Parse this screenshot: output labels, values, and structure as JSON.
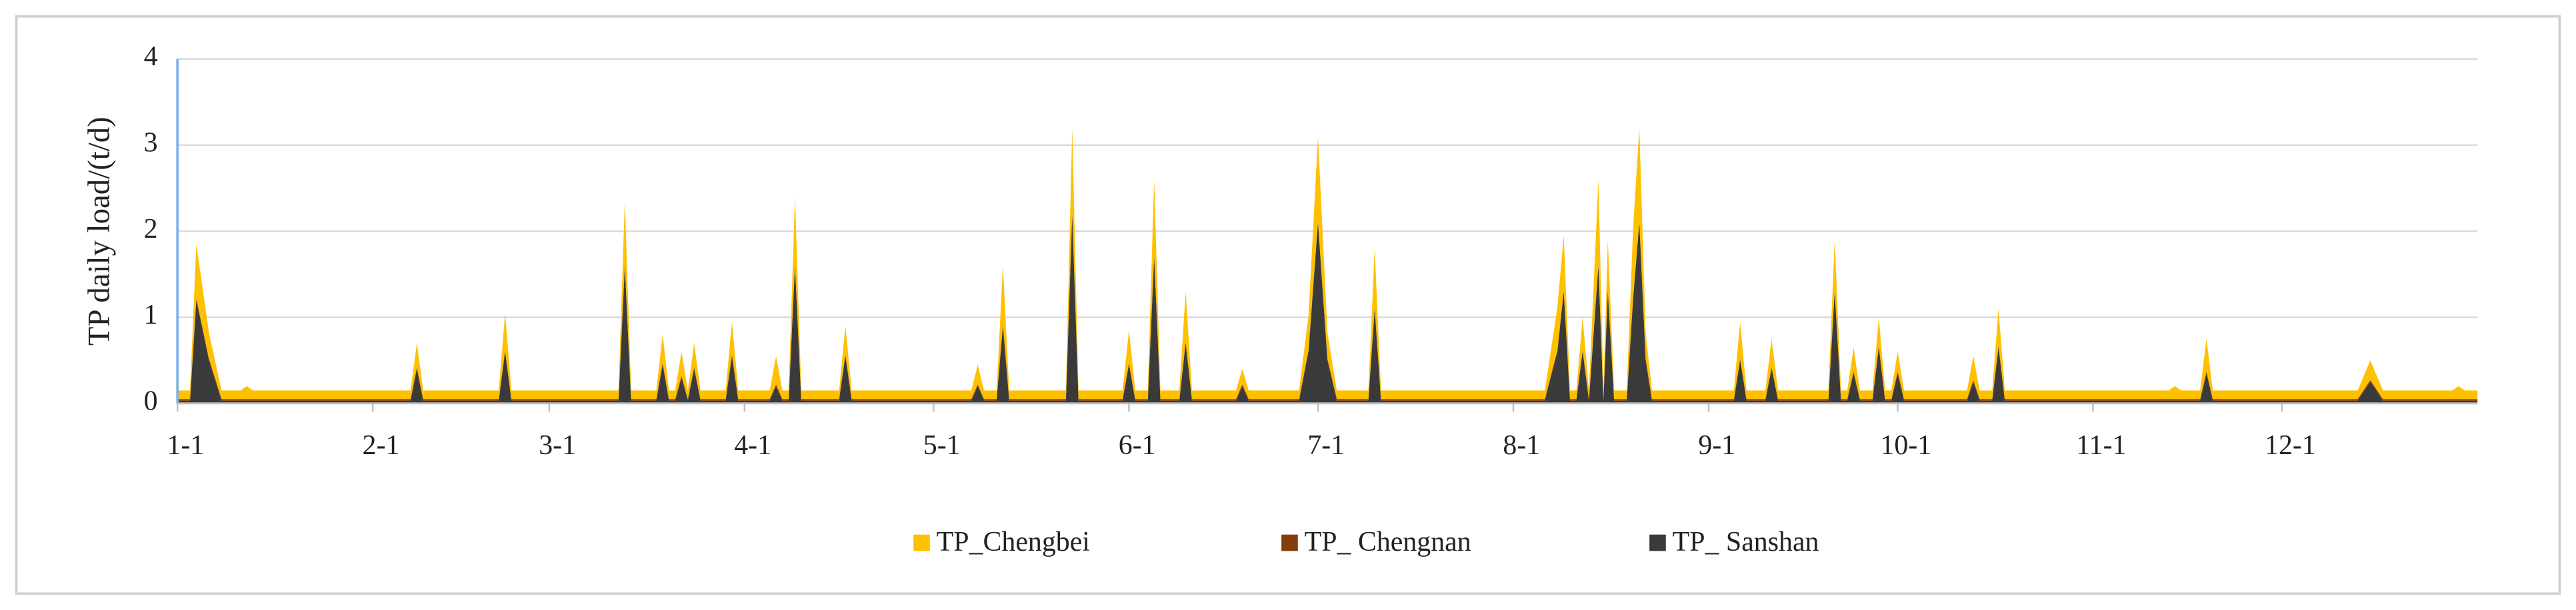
{
  "chart_data": {
    "type": "stacked-area",
    "y_label": "TP daily load/(t/d)",
    "xlim": [
      0,
      365
    ],
    "xticks": [
      {
        "value": 0,
        "label": "1-1"
      },
      {
        "value": 31,
        "label": "2-1"
      },
      {
        "value": 59,
        "label": "3-1"
      },
      {
        "value": 90,
        "label": "4-1"
      },
      {
        "value": 120,
        "label": "5-1"
      },
      {
        "value": 151,
        "label": "6-1"
      },
      {
        "value": 181,
        "label": "7-1"
      },
      {
        "value": 212,
        "label": "8-1"
      },
      {
        "value": 243,
        "label": "9-1"
      },
      {
        "value": 273,
        "label": "10-1"
      },
      {
        "value": 304,
        "label": "11-1"
      },
      {
        "value": 334,
        "label": "12-1"
      }
    ],
    "ylim": [
      0,
      4
    ],
    "yticks": [
      0,
      1,
      2,
      3,
      4
    ],
    "grid": true,
    "legend": "bottom",
    "x": [
      0,
      2,
      3,
      5,
      7,
      10,
      11,
      12,
      37,
      38,
      39,
      51,
      52,
      53,
      70,
      71,
      72,
      76,
      77,
      78,
      79,
      80,
      81,
      82,
      83,
      87,
      88,
      89,
      94,
      95,
      96,
      97,
      98,
      99,
      105,
      106,
      107,
      126,
      127,
      128,
      130,
      131,
      132,
      141,
      142,
      143,
      150,
      151,
      152,
      154,
      155,
      156,
      159,
      160,
      161,
      168,
      169,
      170,
      178,
      179.5,
      181,
      182.5,
      184,
      189,
      190,
      191,
      217,
      219,
      220,
      221,
      222,
      223,
      224,
      225.5,
      226.3,
      227,
      228,
      230,
      231,
      232,
      233,
      234,
      247,
      248,
      249,
      252,
      253,
      254,
      262,
      263,
      264,
      265,
      266,
      267,
      269,
      270,
      271,
      272,
      273,
      274,
      284,
      285,
      286,
      288,
      289,
      290,
      316,
      317,
      318,
      321,
      322,
      323,
      346,
      348,
      350,
      361,
      362,
      363,
      365
    ],
    "series": [
      {
        "name": "TP_Chengbei",
        "color": "#ffc000",
        "values": [
          0.1,
          0.1,
          0.63,
          0.3,
          0.1,
          0.1,
          0.15,
          0.1,
          0.1,
          0.28,
          0.1,
          0.1,
          0.43,
          0.1,
          0.1,
          0.73,
          0.1,
          0.1,
          0.33,
          0.1,
          0.1,
          0.28,
          0.1,
          0.28,
          0.1,
          0.1,
          0.38,
          0.1,
          0.1,
          0.33,
          0.1,
          0.1,
          0.78,
          0.1,
          0.1,
          0.33,
          0.1,
          0.1,
          0.23,
          0.1,
          0.1,
          0.68,
          0.1,
          0.1,
          0.98,
          0.1,
          0.1,
          0.38,
          0.1,
          0.1,
          0.88,
          0.1,
          0.1,
          0.58,
          0.1,
          0.1,
          0.18,
          0.1,
          0.1,
          0.4,
          0.98,
          0.3,
          0.1,
          0.1,
          0.68,
          0.1,
          0.1,
          0.5,
          0.63,
          0.1,
          0.1,
          0.38,
          0.1,
          0.98,
          0.1,
          0.58,
          0.1,
          0.1,
          0.8,
          1.08,
          0.3,
          0.1,
          0.1,
          0.43,
          0.1,
          0.1,
          0.33,
          0.1,
          0.1,
          0.58,
          0.1,
          0.1,
          0.28,
          0.1,
          0.1,
          0.33,
          0.1,
          0.1,
          0.23,
          0.1,
          0.1,
          0.28,
          0.1,
          0.1,
          0.43,
          0.1,
          0.1,
          0.15,
          0.1,
          0.1,
          0.38,
          0.1,
          0.1,
          0.23,
          0.1,
          0.1,
          0.15,
          0.1,
          0.1
        ]
      },
      {
        "name": "TP_ Chengnan",
        "color": "#843c0c",
        "values": [
          0.02,
          0.02,
          0.02,
          0.02,
          0.02,
          0.02,
          0.02,
          0.02,
          0.02,
          0.02,
          0.02,
          0.02,
          0.02,
          0.02,
          0.02,
          0.02,
          0.02,
          0.02,
          0.02,
          0.02,
          0.02,
          0.02,
          0.02,
          0.02,
          0.02,
          0.02,
          0.02,
          0.02,
          0.02,
          0.02,
          0.02,
          0.02,
          0.02,
          0.02,
          0.02,
          0.02,
          0.02,
          0.02,
          0.02,
          0.02,
          0.02,
          0.02,
          0.02,
          0.02,
          0.02,
          0.02,
          0.02,
          0.02,
          0.02,
          0.02,
          0.02,
          0.02,
          0.02,
          0.02,
          0.02,
          0.02,
          0.02,
          0.02,
          0.02,
          0.02,
          0.02,
          0.02,
          0.02,
          0.02,
          0.02,
          0.02,
          0.02,
          0.02,
          0.02,
          0.02,
          0.02,
          0.02,
          0.02,
          0.02,
          0.02,
          0.02,
          0.02,
          0.02,
          0.02,
          0.02,
          0.02,
          0.02,
          0.02,
          0.02,
          0.02,
          0.02,
          0.02,
          0.02,
          0.02,
          0.02,
          0.02,
          0.02,
          0.02,
          0.02,
          0.02,
          0.02,
          0.02,
          0.02,
          0.02,
          0.02,
          0.02,
          0.02,
          0.02,
          0.02,
          0.02,
          0.02,
          0.02,
          0.02,
          0.02,
          0.02,
          0.02,
          0.02,
          0.02,
          0.02,
          0.02,
          0.02,
          0.02,
          0.02,
          0.02
        ]
      },
      {
        "name": "TP_ Sanshan",
        "color": "#3a3a3a",
        "values": [
          0.03,
          0.03,
          1.2,
          0.5,
          0.03,
          0.03,
          0.03,
          0.03,
          0.03,
          0.4,
          0.03,
          0.03,
          0.6,
          0.03,
          0.03,
          1.6,
          0.03,
          0.03,
          0.45,
          0.03,
          0.03,
          0.3,
          0.03,
          0.4,
          0.03,
          0.03,
          0.55,
          0.03,
          0.03,
          0.2,
          0.03,
          0.03,
          1.6,
          0.03,
          0.03,
          0.55,
          0.03,
          0.03,
          0.2,
          0.03,
          0.03,
          0.9,
          0.03,
          0.03,
          2.2,
          0.03,
          0.03,
          0.45,
          0.03,
          0.03,
          1.7,
          0.03,
          0.03,
          0.7,
          0.03,
          0.03,
          0.2,
          0.03,
          0.03,
          0.6,
          2.1,
          0.5,
          0.03,
          0.03,
          1.1,
          0.03,
          0.03,
          0.6,
          1.3,
          0.03,
          0.03,
          0.6,
          0.03,
          1.6,
          0.03,
          1.3,
          0.03,
          0.03,
          1.2,
          2.1,
          0.5,
          0.03,
          0.03,
          0.5,
          0.03,
          0.03,
          0.4,
          0.03,
          0.03,
          1.3,
          0.03,
          0.03,
          0.35,
          0.03,
          0.03,
          0.65,
          0.03,
          0.03,
          0.35,
          0.03,
          0.03,
          0.25,
          0.03,
          0.03,
          0.65,
          0.03,
          0.03,
          0.03,
          0.03,
          0.03,
          0.35,
          0.03,
          0.03,
          0.25,
          0.03,
          0.03,
          0.03,
          0.03,
          0.03
        ]
      }
    ]
  }
}
